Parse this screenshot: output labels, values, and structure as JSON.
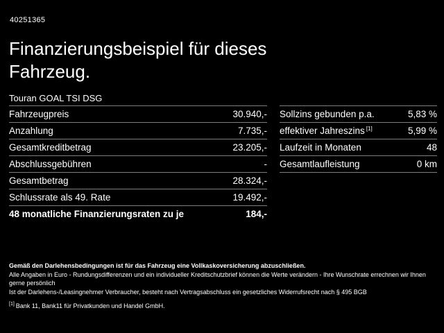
{
  "header": {
    "ref_number": "40251365",
    "title_line1": "Finanzierungsbeispiel für dieses",
    "title_line2": "Fahrzeug.",
    "vehicle": "Touran GOAL TSI DSG"
  },
  "tables": {
    "left": {
      "rows": [
        {
          "label": "Fahrzeugpreis",
          "value": "30.940,-"
        },
        {
          "label": "Anzahlung",
          "value": "7.735,-"
        },
        {
          "label": "Gesamtkreditbetrag",
          "value": "23.205,-"
        },
        {
          "label": "Abschlussgebühren",
          "value": "-"
        },
        {
          "label": "Gesamtbetrag",
          "value": "28.324,-"
        },
        {
          "label": "Schlussrate als 49. Rate",
          "value": "19.492,-"
        },
        {
          "label": "48 monatliche Finanzierungsraten zu je",
          "value": "184,-"
        }
      ]
    },
    "right": {
      "rows": [
        {
          "label": "Sollzins gebunden p.a.",
          "sup": "",
          "value": "5,83 %"
        },
        {
          "label": "effektiver Jahreszins",
          "sup": "[1]",
          "value": "5,99 %"
        },
        {
          "label": "Laufzeit in Monaten",
          "sup": "",
          "value": "48"
        },
        {
          "label": "Gesamtlaufleistung",
          "sup": "",
          "value": "0 km"
        }
      ]
    }
  },
  "footnotes": {
    "line1": "Gemäß den Darlehensbedingungen ist für das Fahrzeug eine Vollkaskoversicherung abzuschließen.",
    "line2": "Alle Angaben in Euro - Rundungsdifferenzen und ein individueller Kreditschutzbrief können die Werte verändern - Ihre Wunschrate errechnen wir Ihnen gerne persönlich",
    "line3": "Ist der Darlehens-/Leasingnehmer Verbraucher, besteht nach Vertragsabschluss ein gesetzliches Widerrufsrecht nach § 495 BGB",
    "line4_sup": "[1]",
    "line4": "Bank 11, Bank11 für Privatkunden und Handel GmbH."
  },
  "colors": {
    "background": "#000000",
    "text": "#ffffff",
    "divider": "#7f7f7f"
  }
}
